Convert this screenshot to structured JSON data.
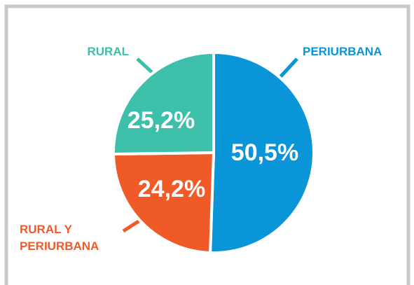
{
  "chart_data": {
    "type": "pie",
    "categories": [
      "PERIURBANA",
      "RURAL Y PERIURBANA",
      "RURAL"
    ],
    "values": [
      50.5,
      24.2,
      25.2
    ],
    "value_labels": [
      "50,5%",
      "24,2%",
      "25,2%"
    ],
    "colors": [
      "#0a95d9",
      "#f05a28",
      "#3dbfaa"
    ]
  }
}
